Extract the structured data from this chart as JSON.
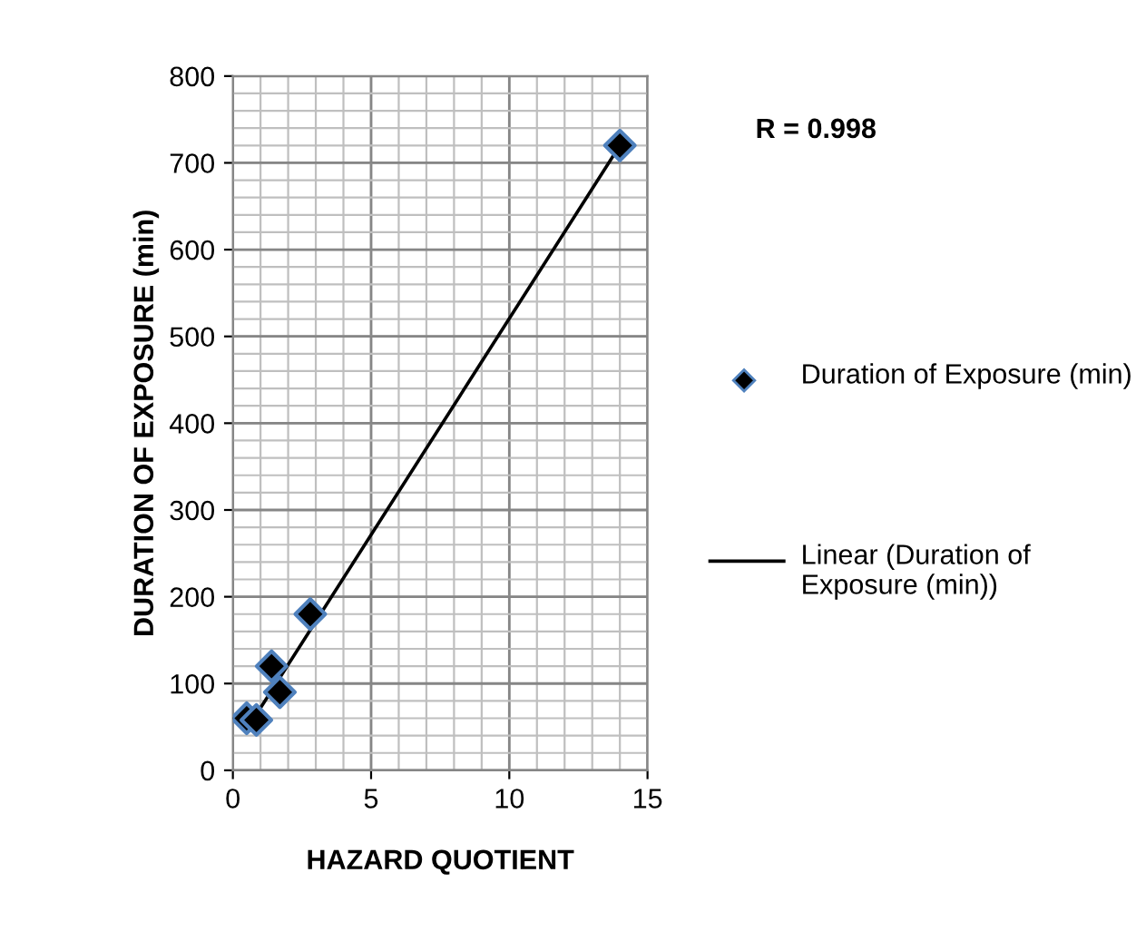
{
  "chart_data": {
    "type": "scatter",
    "xlabel": "HAZARD QUOTIENT",
    "ylabel": "DURATION OF EXPOSURE (min)",
    "xlim": [
      0,
      15
    ],
    "ylim": [
      0,
      800
    ],
    "xticks": [
      0,
      5,
      10,
      15
    ],
    "yticks": [
      0,
      100,
      200,
      300,
      400,
      500,
      600,
      700,
      800
    ],
    "grid": true,
    "legend": "right",
    "annotations": [
      "R = 0.998"
    ],
    "series": [
      {
        "name": "Duration of Exposure (min)",
        "marker": "diamond",
        "color": "#000000",
        "x": [
          0.5,
          0.85,
          1.4,
          1.7,
          2.8,
          14.0
        ],
        "values": [
          60,
          58,
          120,
          90,
          180,
          720
        ]
      },
      {
        "name": "Linear (Duration of Exposure (min))",
        "type": "line",
        "color": "#000000",
        "x": [
          0.6,
          14.0
        ],
        "values": [
          52,
          720
        ]
      }
    ]
  }
}
